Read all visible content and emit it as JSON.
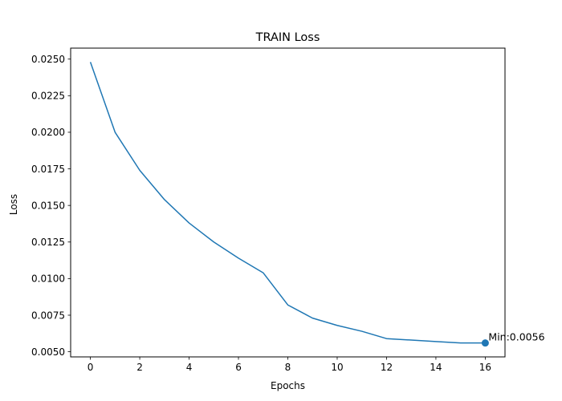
{
  "chart_data": {
    "type": "line",
    "title": "TRAIN Loss",
    "xlabel": "Epochs",
    "ylabel": "Loss",
    "xlim": [
      -0.8,
      16.8
    ],
    "ylim": [
      0.00465,
      0.02575
    ],
    "x_ticks": [
      0,
      2,
      4,
      6,
      8,
      10,
      12,
      14,
      16
    ],
    "x_tick_labels": [
      "0",
      "2",
      "4",
      "6",
      "8",
      "10",
      "12",
      "14",
      "16"
    ],
    "y_ticks": [
      0.005,
      0.0075,
      0.01,
      0.0125,
      0.015,
      0.0175,
      0.02,
      0.0225,
      0.025
    ],
    "y_tick_labels": [
      "0.0050",
      "0.0075",
      "0.0100",
      "0.0125",
      "0.0150",
      "0.0175",
      "0.0200",
      "0.0225",
      "0.0250"
    ],
    "grid": false,
    "series": [
      {
        "color": "#1f77b4",
        "x": [
          0,
          1,
          2,
          3,
          4,
          5,
          6,
          7,
          8,
          9,
          10,
          11,
          12,
          13,
          14,
          15,
          16
        ],
        "values": [
          0.0248,
          0.02,
          0.0174,
          0.0154,
          0.0138,
          0.0125,
          0.0114,
          0.0104,
          0.0082,
          0.0073,
          0.0068,
          0.0064,
          0.0059,
          0.0058,
          0.0057,
          0.0056,
          0.0056
        ]
      }
    ],
    "annotation": {
      "x": 16,
      "y": 0.0056,
      "label": "Min:0.0056",
      "color": "#1f77b4"
    }
  }
}
